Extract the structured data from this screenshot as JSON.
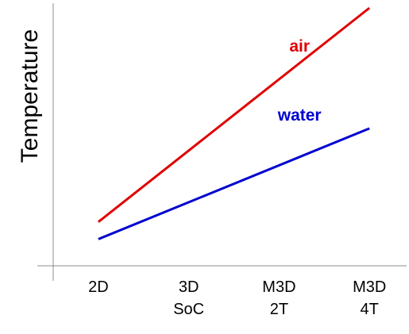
{
  "chart_data": {
    "type": "line",
    "xlabel": "",
    "ylabel": "Temperature",
    "categories": [
      [
        "2D"
      ],
      [
        "3D",
        "SoC"
      ],
      [
        "M3D",
        "2T"
      ],
      [
        "M3D",
        "4T"
      ]
    ],
    "x_axis_ticks": [
      0,
      1,
      2,
      3
    ],
    "series": [
      {
        "name": "air",
        "color": "#e00000",
        "points": [
          {
            "x": 0,
            "y": 13
          },
          {
            "x": 3,
            "y": 100
          }
        ]
      },
      {
        "name": "water",
        "color": "#0000d0",
        "points": [
          {
            "x": 0,
            "y": 6
          },
          {
            "x": 3,
            "y": 51
          }
        ]
      }
    ],
    "ylim": [
      0,
      100
    ],
    "xlim": [
      -0.5,
      3.35
    ],
    "grid": false,
    "y_tick_labels": false
  }
}
